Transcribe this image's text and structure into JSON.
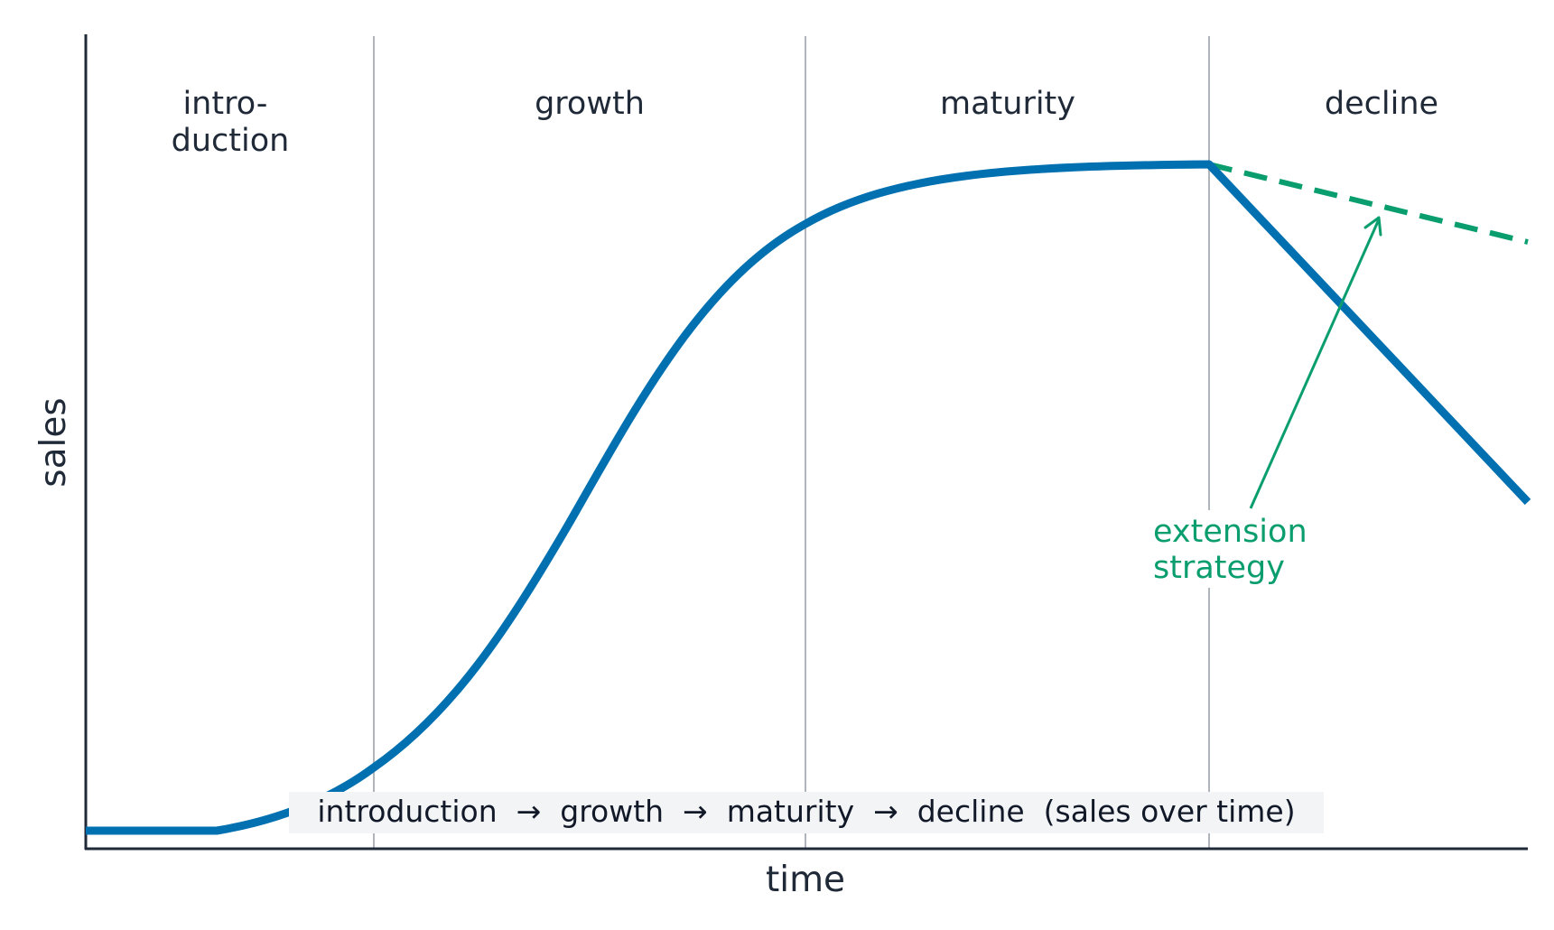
{
  "stages": [
    {
      "line1": "intro-",
      "line2": "duction"
    },
    {
      "line1": "growth",
      "line2": ""
    },
    {
      "line1": "maturity",
      "line2": ""
    },
    {
      "line1": "decline",
      "line2": ""
    }
  ],
  "axes": {
    "x_label": "time",
    "y_label": "sales"
  },
  "annotation": {
    "line1": "extension",
    "line2": "strategy"
  },
  "caption": "introduction  →  growth  →  maturity  →  decline  (sales over time)",
  "colors": {
    "main_curve": "#0070b0",
    "extension": "#0a9e6e",
    "axis": "#1f2937",
    "divider": "#b0b4bb",
    "caption_bg": "#f3f4f6"
  }
}
